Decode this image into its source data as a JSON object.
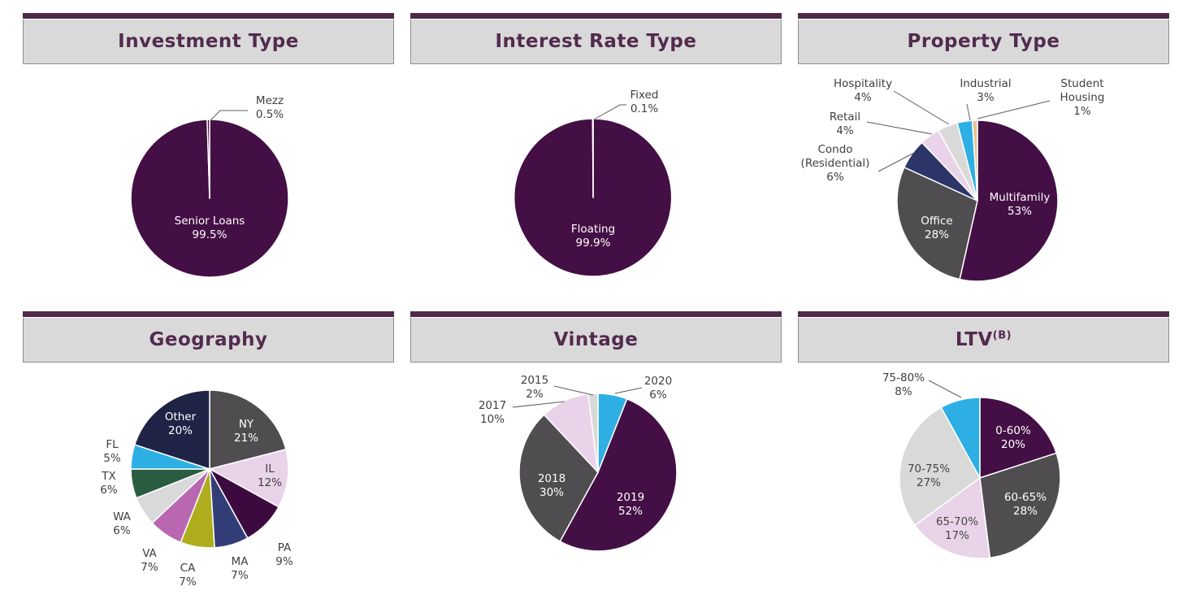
{
  "page": {
    "background": "#ffffff",
    "accent_bar_color": "#4f2a49",
    "header_fill": "#d9d9d9",
    "title_color": "#522b4e",
    "label_color": "#3f3f3f"
  },
  "chart_data": [
    {
      "id": "investment-type",
      "type": "pie",
      "title": "Investment Type",
      "legend_position": "none",
      "labels": "callout",
      "slices": [
        {
          "label": "Senior Loans",
          "pct": "99.5%",
          "value": 99.5,
          "color": "#440f45"
        },
        {
          "label": "Mezz",
          "pct": "0.5%",
          "value": 0.5,
          "color": "#440f45"
        }
      ]
    },
    {
      "id": "interest-rate-type",
      "type": "pie",
      "title": "Interest Rate Type",
      "legend_position": "none",
      "labels": "callout",
      "slices": [
        {
          "label": "Floating",
          "pct": "99.9%",
          "value": 99.9,
          "color": "#440f45"
        },
        {
          "label": "Fixed",
          "pct": "0.1%",
          "value": 0.1,
          "color": "#440f45"
        }
      ]
    },
    {
      "id": "property-type",
      "type": "pie",
      "title": "Property Type",
      "legend_position": "none",
      "labels": "callout",
      "slices": [
        {
          "label": "Multifamily",
          "pct": "53%",
          "value": 53,
          "color": "#440f45"
        },
        {
          "label": "Office",
          "pct": "28%",
          "value": 28,
          "color": "#4f4d4f"
        },
        {
          "label": "Condo\n(Residential)",
          "pct": "6%",
          "value": 6,
          "color": "#2b3568"
        },
        {
          "label": "Retail",
          "pct": "4%",
          "value": 4,
          "color": "#e9d3e8"
        },
        {
          "label": "Hospitality",
          "pct": "4%",
          "value": 4,
          "color": "#d9d9d9"
        },
        {
          "label": "Industrial",
          "pct": "3%",
          "value": 3,
          "color": "#2eafe4"
        },
        {
          "label": "Student\nHousing",
          "pct": "1%",
          "value": 1,
          "color": "#e7c295"
        }
      ]
    },
    {
      "id": "geography",
      "type": "pie",
      "title": "Geography",
      "legend_position": "none",
      "labels": "callout",
      "slices": [
        {
          "label": "NY",
          "pct": "21%",
          "value": 21,
          "color": "#4f4d4f"
        },
        {
          "label": "IL",
          "pct": "12%",
          "value": 12,
          "color": "#e9d3e8"
        },
        {
          "label": "PA",
          "pct": "9%",
          "value": 9,
          "color": "#3d0a40"
        },
        {
          "label": "MA",
          "pct": "7%",
          "value": 7,
          "color": "#333d78"
        },
        {
          "label": "CA",
          "pct": "7%",
          "value": 7,
          "color": "#adad1e"
        },
        {
          "label": "VA",
          "pct": "7%",
          "value": 7,
          "color": "#b967b1"
        },
        {
          "label": "WA",
          "pct": "6%",
          "value": 6,
          "color": "#d9d9d9"
        },
        {
          "label": "TX",
          "pct": "6%",
          "value": 6,
          "color": "#2a5c41"
        },
        {
          "label": "FL",
          "pct": "5%",
          "value": 5,
          "color": "#2eafe4"
        },
        {
          "label": "Other",
          "pct": "20%",
          "value": 20,
          "color": "#1f2446"
        }
      ]
    },
    {
      "id": "vintage",
      "type": "pie",
      "title": "Vintage",
      "legend_position": "none",
      "labels": "callout",
      "slices": [
        {
          "label": "2020",
          "pct": "6%",
          "value": 6,
          "color": "#2eafe4"
        },
        {
          "label": "2019",
          "pct": "52%",
          "value": 52,
          "color": "#440f45"
        },
        {
          "label": "2018",
          "pct": "30%",
          "value": 30,
          "color": "#4f4d4f"
        },
        {
          "label": "2017",
          "pct": "10%",
          "value": 10,
          "color": "#e9d3e8"
        },
        {
          "label": "2015",
          "pct": "2%",
          "value": 2,
          "color": "#d9d9d9"
        }
      ]
    },
    {
      "id": "ltv",
      "type": "pie",
      "title": "LTV",
      "title_suffix": "(B)",
      "legend_position": "none",
      "labels": "callout",
      "slices": [
        {
          "label": "0-60%",
          "pct": "20%",
          "value": 20,
          "color": "#440f45"
        },
        {
          "label": "60-65%",
          "pct": "28%",
          "value": 28,
          "color": "#4f4d4f"
        },
        {
          "label": "65-70%",
          "pct": "17%",
          "value": 17,
          "color": "#e9d3e8"
        },
        {
          "label": "70-75%",
          "pct": "27%",
          "value": 27,
          "color": "#d9d9d9"
        },
        {
          "label": "75-80%",
          "pct": "8%",
          "value": 8,
          "color": "#2eafe4"
        }
      ]
    }
  ]
}
